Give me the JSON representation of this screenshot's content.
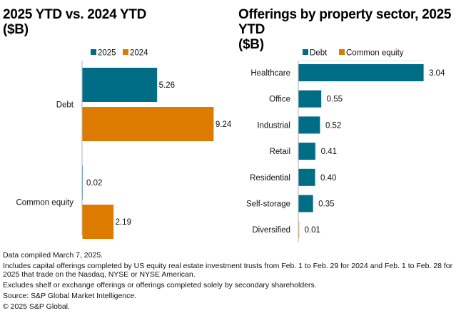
{
  "colors": {
    "teal": "#006d87",
    "orange": "#dd7a00",
    "axis": "#bfbfbf"
  },
  "chart_data": [
    {
      "type": "bar",
      "orientation": "horizontal",
      "title": "2025 YTD vs. 2024 YTD ($B)",
      "title_line1": "2025 YTD vs. 2024 YTD",
      "title_line2": "($B)",
      "categories": [
        "Debt",
        "Common equity"
      ],
      "series": [
        {
          "name": "2025",
          "color": "#006d87",
          "values": [
            5.26,
            0.02
          ],
          "labels": [
            "5.26",
            "0.02"
          ]
        },
        {
          "name": "2024",
          "color": "#dd7a00",
          "values": [
            9.24,
            2.19
          ],
          "labels": [
            "9.24",
            "2.19"
          ]
        }
      ],
      "legend": "top-center",
      "xlim": [
        0,
        10
      ],
      "grid": false
    },
    {
      "type": "bar",
      "orientation": "horizontal",
      "stacked": true,
      "title": "Offerings by property sector, 2025 YTD ($B)",
      "title_line1": "Offerings by property sector, 2025 YTD",
      "title_line2": "($B)",
      "categories": [
        "Healthcare",
        "Office",
        "Industrial",
        "Retail",
        "Residential",
        "Self-storage",
        "Diversified"
      ],
      "series": [
        {
          "name": "Debt",
          "color": "#006d87",
          "values": [
            3.04,
            0.55,
            0.52,
            0.4,
            0.4,
            0.35,
            0.0
          ]
        },
        {
          "name": "Common equity",
          "color": "#dd7a00",
          "values": [
            0.0,
            0.0,
            0.0,
            0.01,
            0.0,
            0.0,
            0.01
          ]
        }
      ],
      "total_labels": [
        "3.04",
        "0.55",
        "0.52",
        "0.41",
        "0.40",
        "0.35",
        "0.01"
      ],
      "legend": "top-center",
      "xlim": [
        0,
        4
      ],
      "grid": false
    }
  ],
  "footnotes": [
    "Data compiled March 7, 2025.",
    "Includes capital offerings completed by US equity real estate investment trusts from Feb. 1 to Feb. 29 for 2024 and Feb. 1 to Feb. 28 for 2025 that trade on the Nasdaq, NYSE or NYSE American.",
    "Excludes shelf or exchange offerings or offerings completed solely by secondary shareholders.",
    "Source: S&P Global Market Intelligence.",
    "© 2025 S&P Global."
  ]
}
